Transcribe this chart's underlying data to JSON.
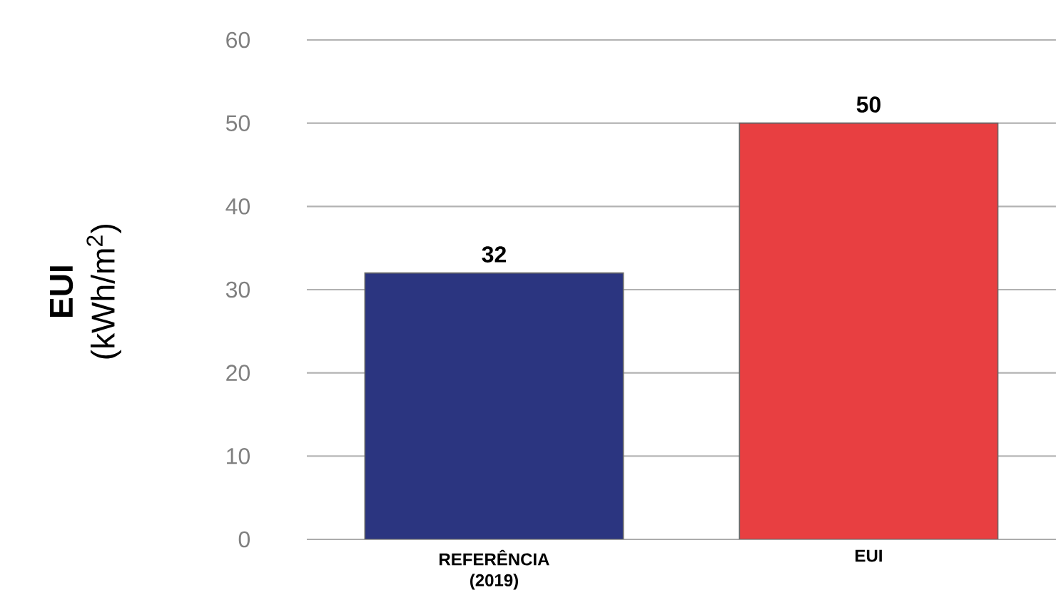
{
  "chart_data": {
    "type": "bar",
    "ylabel": "**EUI** (kWh/m$^{2}$)",
    "categories": [
      "REFERÊNCIA (2019)",
      "EUI"
    ],
    "values": [
      32,
      50
    ],
    "colors": [
      "#2b3580",
      "#e83f41"
    ],
    "ylim": [
      0,
      60
    ],
    "yticks": [
      0,
      10,
      20,
      30,
      40,
      50,
      60
    ],
    "grid": "y",
    "data_labels": true
  }
}
